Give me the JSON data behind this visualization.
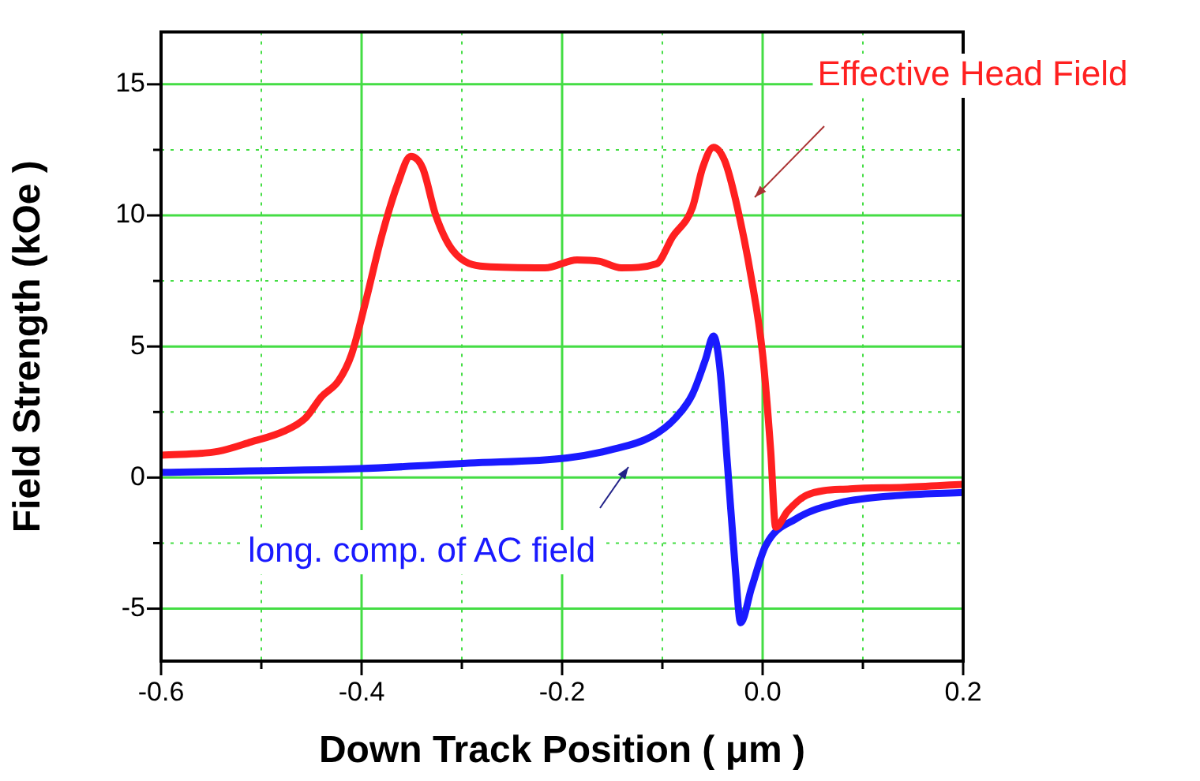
{
  "chart_data": {
    "type": "line",
    "xlabel": "Down Track Position ( μm )",
    "ylabel": "Field Strength (kOe )",
    "xlim": [
      -0.6,
      0.2
    ],
    "ylim": [
      -7,
      17
    ],
    "xticks": [
      -0.6,
      {
        "value": -0.5,
        "label": null
      },
      -0.4,
      {
        "value": -0.3,
        "label": null
      },
      -0.2,
      {
        "value": -0.1,
        "label": null
      },
      {
        "value": 0,
        "label": "0.0"
      },
      {
        "value": 0.1,
        "label": null
      },
      0.2
    ],
    "yticks": [
      -5,
      {
        "value": -2.5,
        "label": null
      },
      0,
      {
        "value": 2.5,
        "label": null
      },
      5,
      {
        "value": 7.5,
        "label": null
      },
      10,
      {
        "value": 12.5,
        "label": null
      },
      15
    ],
    "grid": true,
    "marker": "none",
    "line_style": "solid",
    "series": [
      {
        "color": "#ff2020",
        "x": [
          -0.6,
          -0.543,
          -0.51,
          -0.478,
          -0.456,
          -0.44,
          -0.423,
          -0.41,
          -0.396,
          -0.38,
          -0.364,
          -0.351,
          -0.339,
          -0.326,
          -0.309,
          -0.277,
          -0.217,
          -0.185,
          -0.163,
          -0.141,
          -0.106,
          -0.09,
          -0.07,
          -0.06,
          -0.049,
          -0.038,
          -0.027,
          -0.011,
          0.0,
          0.008,
          0.013,
          0.025,
          0.044,
          0.087,
          0.141,
          0.2
        ],
        "values": [
          0.85,
          1.0,
          1.36,
          1.76,
          2.27,
          3.08,
          3.69,
          4.7,
          6.7,
          9.2,
          11.2,
          12.25,
          11.8,
          10.0,
          8.66,
          8.05,
          8.0,
          8.3,
          8.25,
          8.0,
          8.15,
          9.17,
          10.3,
          11.8,
          12.6,
          12.1,
          10.6,
          7.55,
          4.7,
          1.05,
          -1.89,
          -1.28,
          -0.67,
          -0.43,
          -0.37,
          -0.26
        ]
      },
      {
        "color": "#1a1aff",
        "x": [
          -0.6,
          -0.402,
          -0.293,
          -0.195,
          -0.152,
          -0.111,
          -0.087,
          -0.07,
          -0.057,
          -0.049,
          -0.043,
          -0.035,
          -0.027,
          -0.022,
          -0.011,
          0.003,
          0.033,
          0.076,
          0.141,
          0.2
        ],
        "values": [
          0.2,
          0.34,
          0.55,
          0.75,
          1.05,
          1.56,
          2.27,
          3.18,
          4.5,
          5.4,
          4.3,
          0.45,
          -3.6,
          -5.54,
          -4.2,
          -2.6,
          -1.58,
          -0.97,
          -0.67,
          -0.57
        ]
      }
    ],
    "annotations": [
      "Effective Head Field",
      "long. comp. of AC field"
    ]
  }
}
